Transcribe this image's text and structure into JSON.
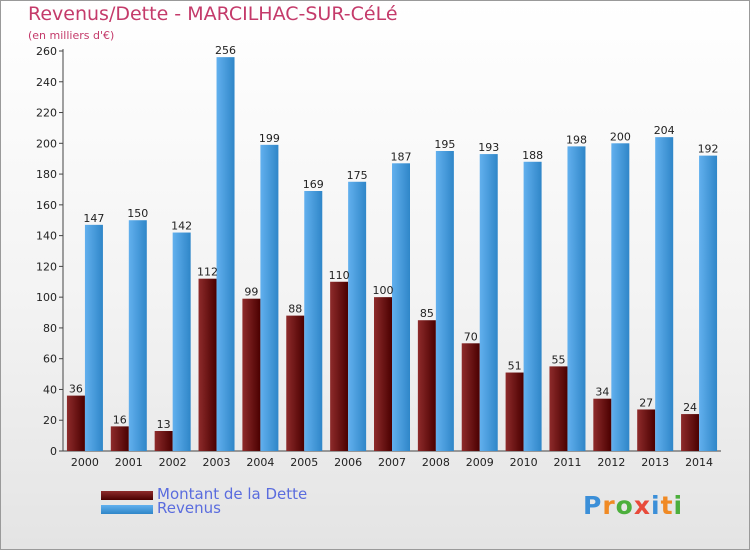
{
  "title": "Revenus/Dette - MARCILHAC-SUR-CéLé",
  "subtitle": "(en milliers d'€)",
  "colors": {
    "dette_light": "#8e2b2b",
    "dette_dark": "#4a0000",
    "revenus_light": "#62b0ee",
    "revenus_dark": "#2f86c8",
    "title": "#c43a6a",
    "legend_text": "#5a6cde"
  },
  "legend": {
    "dette": "Montant de la Dette",
    "revenus": "Revenus"
  },
  "logo": {
    "letters": [
      "P",
      "r",
      "o",
      "x",
      "i",
      "t",
      "i"
    ],
    "colors": [
      "#3b8fd8",
      "#f08a24",
      "#4caf3c",
      "#e84a3a",
      "#3b8fd8",
      "#f08a24",
      "#4caf3c"
    ]
  },
  "chart_data": {
    "type": "bar",
    "title": "Revenus/Dette - MARCILHAC-SUR-CéLé",
    "subtitle": "(en milliers d'€)",
    "categories": [
      "2000",
      "2001",
      "2002",
      "2003",
      "2004",
      "2005",
      "2006",
      "2007",
      "2008",
      "2009",
      "2010",
      "2011",
      "2012",
      "2013",
      "2014"
    ],
    "series": [
      {
        "name": "Montant de la Dette",
        "values": [
          36,
          16,
          13,
          112,
          99,
          88,
          110,
          100,
          85,
          70,
          51,
          55,
          34,
          27,
          24
        ]
      },
      {
        "name": "Revenus",
        "values": [
          147,
          150,
          142,
          256,
          199,
          169,
          175,
          187,
          195,
          193,
          188,
          198,
          200,
          204,
          192
        ]
      }
    ],
    "ylim": [
      0,
      260
    ],
    "yticks": [
      0,
      20,
      40,
      60,
      80,
      100,
      120,
      140,
      160,
      180,
      200,
      220,
      240,
      260
    ],
    "grid": false,
    "legend_position": "bottom-left"
  }
}
